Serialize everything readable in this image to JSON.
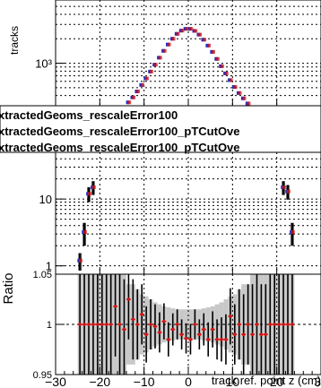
{
  "chart_data": [
    {
      "type": "scatter",
      "panel": "top",
      "ylabel": "tracks",
      "yscale": "log",
      "ylim": [
        300,
        6000
      ],
      "xlim": [
        -30,
        30
      ],
      "yticks": [
        {
          "value": 1000,
          "label": "10³"
        }
      ],
      "grid": true,
      "series": [
        {
          "color": "#1a2ec8",
          "x": [
            -13.5,
            -12.5,
            -11.5,
            -10.5,
            -9.5,
            -8.5,
            -7.5,
            -6.5,
            -5.5,
            -4.5,
            -3.5,
            -2.5,
            -1.5,
            -0.5,
            0.5,
            1.5,
            2.5,
            3.5,
            4.5,
            5.5,
            6.5,
            7.5,
            8.5,
            9.5,
            10.5,
            11.5,
            12.5,
            13.5
          ],
          "y": [
            330,
            380,
            450,
            540,
            650,
            790,
            960,
            1170,
            1420,
            1700,
            2000,
            2300,
            2520,
            2650,
            2650,
            2500,
            2250,
            1950,
            1650,
            1380,
            1130,
            920,
            750,
            620,
            510,
            430,
            370,
            320
          ]
        },
        {
          "color": "#d21414",
          "x": [
            -13.5,
            -12.5,
            -11.5,
            -10.5,
            -9.5,
            -8.5,
            -7.5,
            -6.5,
            -5.5,
            -4.5,
            -3.5,
            -2.5,
            -1.5,
            -0.5,
            0.5,
            1.5,
            2.5,
            3.5,
            4.5,
            5.5,
            6.5,
            7.5,
            8.5,
            9.5,
            10.5,
            11.5,
            12.5,
            13.5
          ],
          "y": [
            330,
            380,
            450,
            540,
            650,
            790,
            960,
            1170,
            1420,
            1700,
            2000,
            2300,
            2520,
            2650,
            2650,
            2500,
            2250,
            1950,
            1650,
            1380,
            1130,
            920,
            750,
            620,
            510,
            430,
            370,
            320
          ]
        }
      ]
    },
    {
      "type": "scatter",
      "panel": "middle",
      "yscale": "log",
      "ylim": [
        0.75,
        50
      ],
      "xlim": [
        -30,
        30
      ],
      "yticks": [
        {
          "value": 1,
          "label": "1"
        },
        {
          "value": 10,
          "label": "10"
        }
      ],
      "grid": true,
      "series": [
        {
          "color": "#1a2ec8",
          "x": [
            -24.5,
            -23.5,
            -22.5,
            -21.5,
            21.5,
            22.5,
            23.5
          ],
          "y": [
            1.2,
            3.2,
            12,
            15,
            15,
            13,
            3.2
          ],
          "err": [
            0.35,
            1.2,
            3.0,
            3.5,
            3.5,
            3.2,
            1.2
          ]
        },
        {
          "color": "#d21414",
          "x": [
            -24.5,
            -23.5,
            -22.5,
            -21.5,
            21.5,
            22.5,
            23.5
          ],
          "y": [
            1.2,
            3.2,
            12,
            15,
            15,
            13,
            3.2
          ],
          "err": [
            0.35,
            1.2,
            3.0,
            3.5,
            3.5,
            3.2,
            1.2
          ]
        }
      ]
    },
    {
      "type": "scatter",
      "panel": "ratio",
      "ylabel": "Ratio",
      "xlabel": "track ref. point z (cm)",
      "ylim": [
        0.95,
        1.05
      ],
      "xlim": [
        -30,
        30
      ],
      "yticks": [
        {
          "value": 0.95,
          "label": "0.95"
        },
        {
          "value": 1,
          "label": "1"
        },
        {
          "value": 1.05,
          "label": "1.05"
        }
      ],
      "xticks": [
        {
          "value": -30,
          "label": "−30"
        },
        {
          "value": -20,
          "label": "−20"
        },
        {
          "value": -10,
          "label": "−10"
        },
        {
          "value": 0,
          "label": "0"
        },
        {
          "value": 10,
          "label": "10"
        },
        {
          "value": 20,
          "label": "20"
        },
        {
          "value": 30,
          "label": "30"
        }
      ],
      "grid": true,
      "series": [
        {
          "name": "ratio",
          "color": "#d21414",
          "x": [
            -24.5,
            -23.5,
            -22.5,
            -21.5,
            -20.5,
            -19.5,
            -18.5,
            -17.5,
            -16.5,
            -15.5,
            -14.5,
            -13.5,
            -12.5,
            -11.5,
            -10.5,
            -9.5,
            -8.5,
            -7.5,
            -6.5,
            -5.5,
            -4.5,
            -3.5,
            -2.5,
            -1.5,
            -0.5,
            0.5,
            1.5,
            2.5,
            3.5,
            4.5,
            5.5,
            6.5,
            7.5,
            8.5,
            9.5,
            10.5,
            11.5,
            12.5,
            13.5,
            14.5,
            15.5,
            16.5,
            17.5,
            18.5,
            19.5,
            20.5,
            21.5,
            22.5,
            23.5
          ],
          "y": [
            1.0,
            1.0,
            1.0,
            1.0,
            1.0,
            1.0,
            1.0,
            1.0,
            1.018,
            1.0,
            0.995,
            1.025,
            1.005,
            1.0,
            1.01,
            0.99,
            1.0,
            0.998,
            0.992,
            1.003,
            0.985,
            0.995,
            1.0,
            0.99,
            0.986,
            0.985,
            1.0,
            0.99,
            0.995,
            0.985,
            0.995,
            0.985,
            0.985,
            0.985,
            1.008,
            0.99,
            1.0,
            0.99,
            1.0,
            0.99,
            1.0,
            0.99,
            0.99,
            1.0,
            1.0,
            1.0,
            1.0,
            1.0,
            1.0
          ],
          "err": [
            0.05,
            0.05,
            0.05,
            0.05,
            0.05,
            0.05,
            0.05,
            0.05,
            0.05,
            0.05,
            0.05,
            0.04,
            0.04,
            0.035,
            0.03,
            0.028,
            0.025,
            0.022,
            0.02,
            0.018,
            0.017,
            0.016,
            0.015,
            0.015,
            0.015,
            0.015,
            0.015,
            0.015,
            0.016,
            0.017,
            0.018,
            0.02,
            0.022,
            0.025,
            0.028,
            0.03,
            0.035,
            0.04,
            0.04,
            0.05,
            0.05,
            0.05,
            0.05,
            0.05,
            0.05,
            0.05,
            0.05,
            0.05,
            0.05
          ]
        }
      ]
    }
  ],
  "legend": {
    "entries": [
      "xtractedGeoms_rescaleError100",
      "xtractedGeoms_rescaleError100_pTCutOve",
      "xtractedGeoms_rescaleError100_pTCutOve"
    ]
  }
}
